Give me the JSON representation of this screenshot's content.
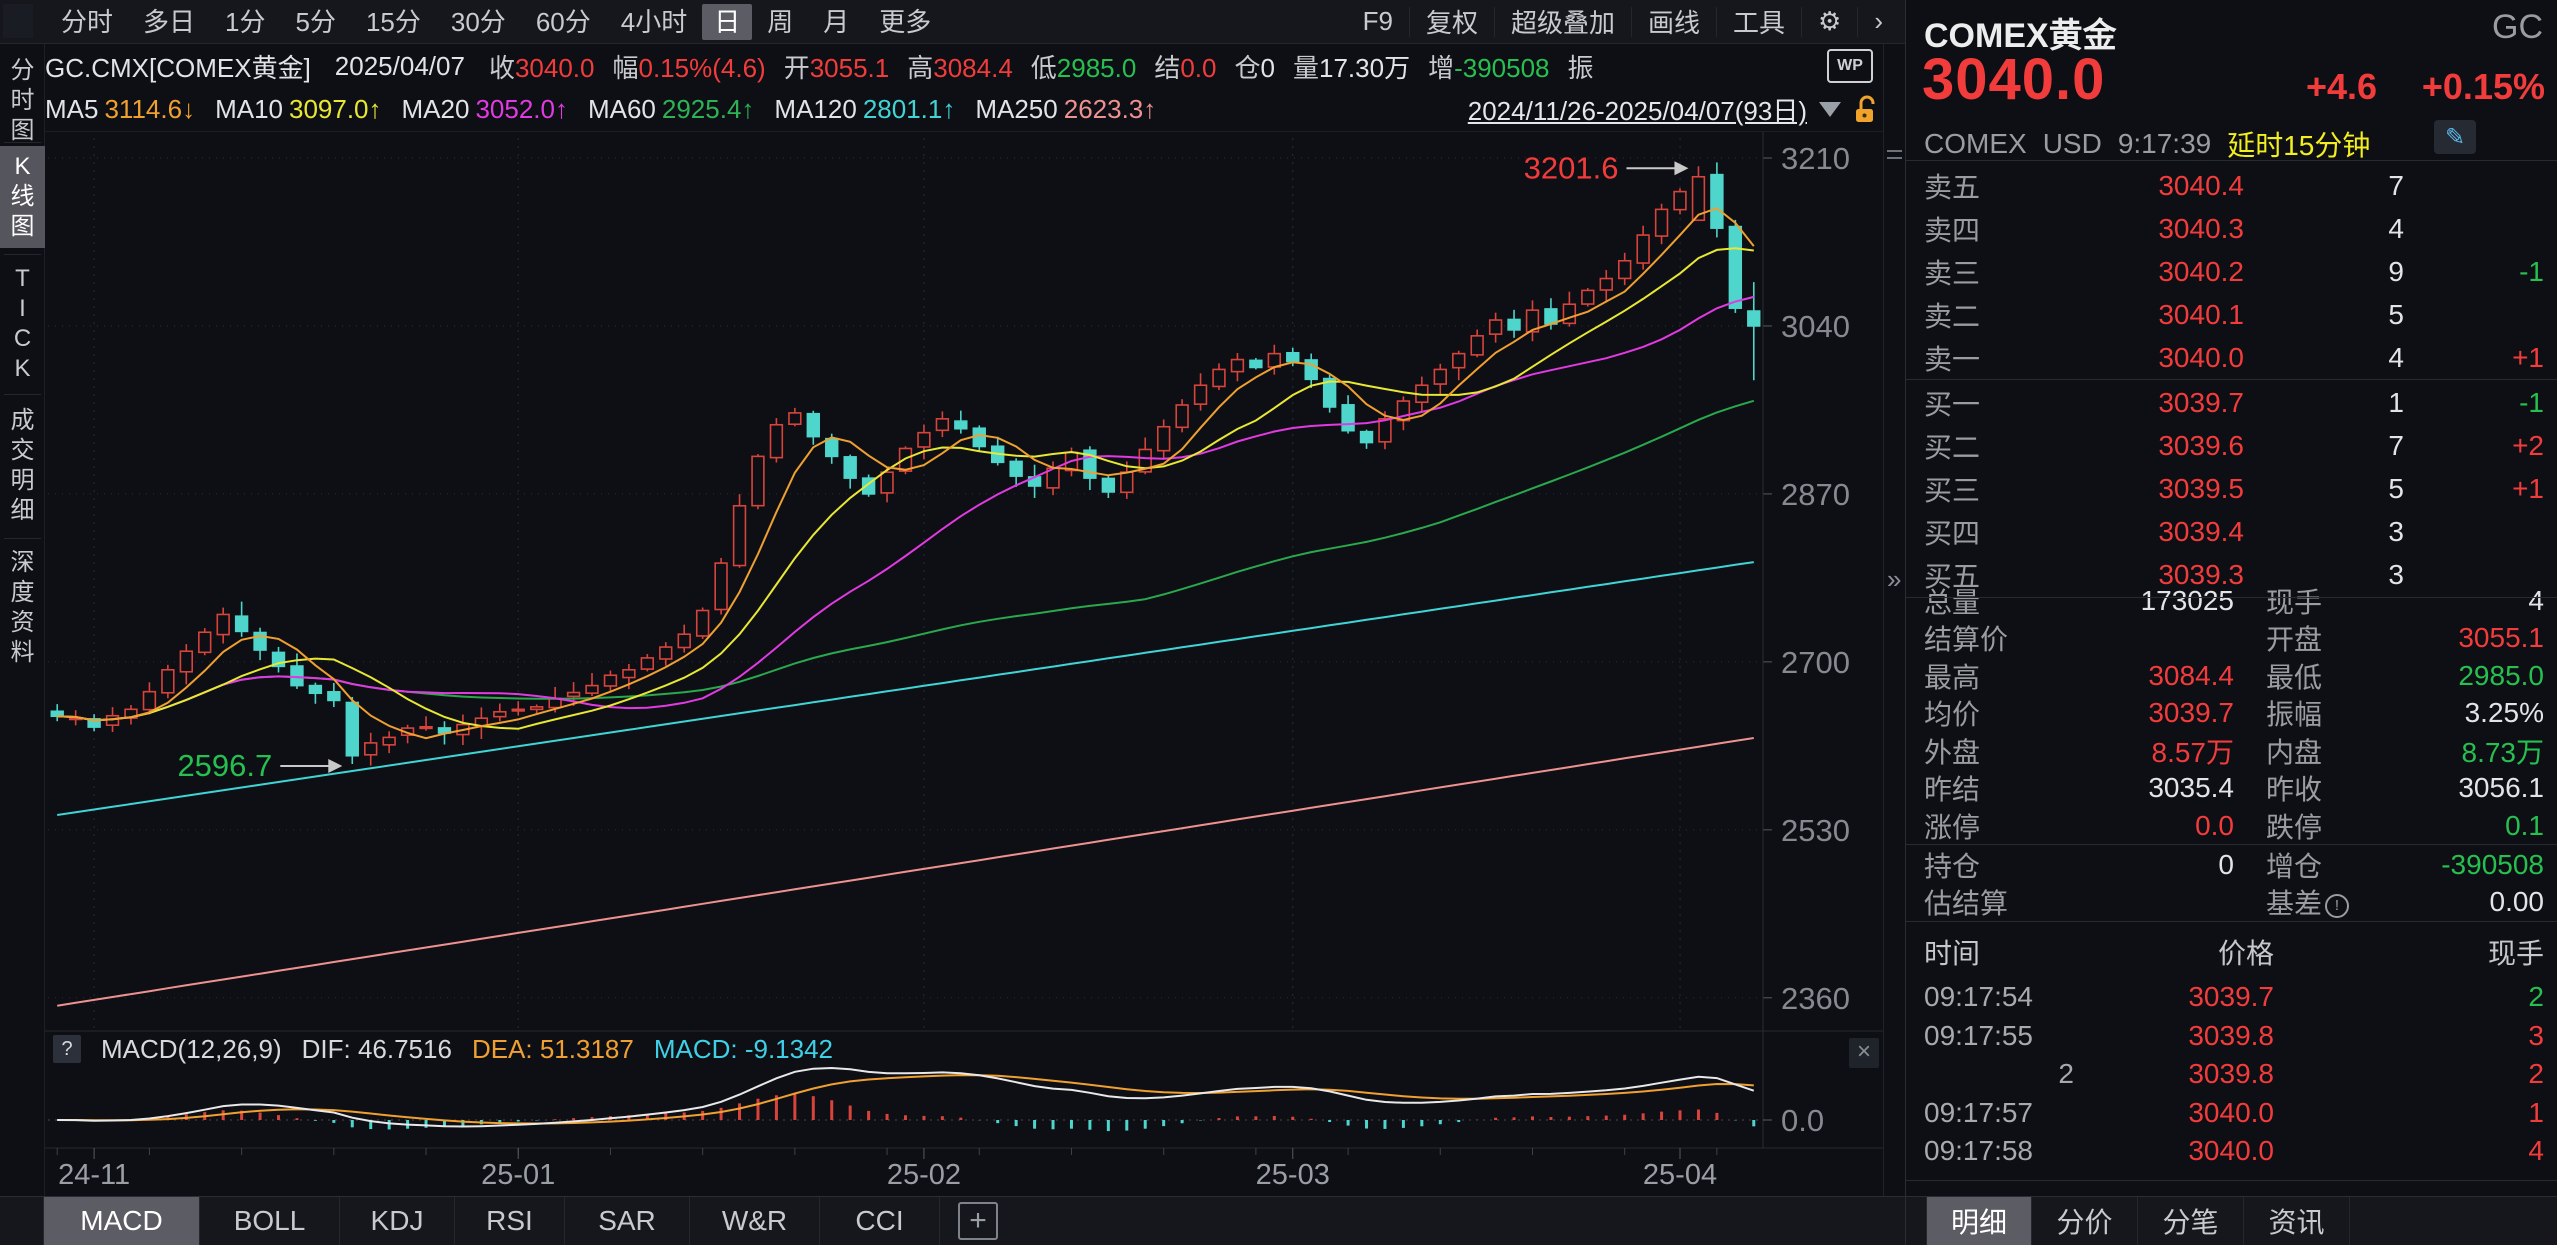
{
  "toolbar": {
    "periods": [
      {
        "label": "分时"
      },
      {
        "label": "多日"
      },
      {
        "label": "1分"
      },
      {
        "label": "5分"
      },
      {
        "label": "15分"
      },
      {
        "label": "30分"
      },
      {
        "label": "60分"
      },
      {
        "label": "4小时"
      },
      {
        "label": "日",
        "selected": true
      },
      {
        "label": "周"
      },
      {
        "label": "月"
      },
      {
        "label": "更多"
      }
    ],
    "right_items": [
      {
        "label": "F9",
        "name": "f9-button"
      },
      {
        "label": "复权",
        "name": "adjust-button"
      },
      {
        "label": "超级叠加",
        "name": "overlay-button"
      },
      {
        "label": "画线",
        "name": "draw-line-button"
      },
      {
        "label": "工具",
        "name": "tools-button"
      },
      {
        "label": "⚙",
        "name": "gear-icon"
      },
      {
        "label": "›",
        "name": "chevron-right-icon"
      }
    ]
  },
  "info_bar": {
    "symbol": "GC.CMX[COMEX黄金]",
    "date": "2025/04/07",
    "fields": [
      {
        "label": "收",
        "value": "3040.0",
        "color": "red"
      },
      {
        "label": "幅",
        "value": "0.15%(4.6)",
        "color": "red"
      },
      {
        "label": "开",
        "value": "3055.1",
        "color": "red"
      },
      {
        "label": "高",
        "value": "3084.4",
        "color": "red"
      },
      {
        "label": "低",
        "value": "2985.0",
        "color": "green"
      },
      {
        "label": "结",
        "value": "0.0",
        "color": "red"
      },
      {
        "label": "仓",
        "value": "0",
        "color": "white"
      },
      {
        "label": "量",
        "value": "17.30万",
        "color": "white"
      },
      {
        "label": "增",
        "value": "-390508",
        "color": "green"
      },
      {
        "label": "振",
        "value": "",
        "color": "white"
      }
    ]
  },
  "ma_bar": {
    "items": [
      {
        "label": "MA5",
        "value": "3114.6",
        "arrow": "↓",
        "color": "#f0a030"
      },
      {
        "label": "MA10",
        "value": "3097.0",
        "arrow": "↑",
        "color": "#e8e833"
      },
      {
        "label": "MA20",
        "value": "3052.0",
        "arrow": "↑",
        "color": "#e23ae2"
      },
      {
        "label": "MA60",
        "value": "2925.4",
        "arrow": "↑",
        "color": "#2db355"
      },
      {
        "label": "MA120",
        "value": "2801.1",
        "arrow": "↑",
        "color": "#41d4d4"
      },
      {
        "label": "MA250",
        "value": "2623.3",
        "arrow": "↑",
        "color": "#ef9191"
      }
    ],
    "date_range": "2024/11/26-2025/04/07(93日)"
  },
  "sidebar": {
    "items": [
      {
        "label": "分时图",
        "name": "sidebar-item-intraday-chart"
      },
      {
        "label": "K线图",
        "name": "sidebar-item-kline-chart",
        "selected": true
      },
      {
        "label": "TICK",
        "name": "sidebar-item-tick"
      },
      {
        "label": "成交明细",
        "name": "sidebar-item-trade-details"
      },
      {
        "label": "深度资料",
        "name": "sidebar-item-depth-info"
      }
    ]
  },
  "chart_data": {
    "type": "candlestick",
    "symbol": "GC.CMX",
    "period": "日",
    "days": 93,
    "y_ticks": [
      3210,
      3040,
      2870,
      2700,
      2530,
      2360
    ],
    "x_ticks": [
      {
        "label": "24-11",
        "idx": 2
      },
      {
        "label": "25-01",
        "idx": 25
      },
      {
        "label": "25-02",
        "idx": 47
      },
      {
        "label": "25-03",
        "idx": 67
      },
      {
        "label": "25-04",
        "idx": 88
      }
    ],
    "price_range": {
      "top": 3233,
      "bottom": 2327
    },
    "close_anchors": [
      [
        0,
        2645
      ],
      [
        2,
        2634
      ],
      [
        4,
        2652
      ],
      [
        6,
        2692
      ],
      [
        8,
        2730
      ],
      [
        9,
        2748
      ],
      [
        11,
        2712
      ],
      [
        13,
        2676
      ],
      [
        15,
        2661
      ],
      [
        16,
        2605
      ],
      [
        17,
        2618
      ],
      [
        19,
        2633
      ],
      [
        21,
        2628
      ],
      [
        23,
        2643
      ],
      [
        25,
        2652
      ],
      [
        27,
        2663
      ],
      [
        29,
        2676
      ],
      [
        31,
        2692
      ],
      [
        33,
        2715
      ],
      [
        34,
        2728
      ],
      [
        35,
        2752
      ],
      [
        36,
        2800
      ],
      [
        37,
        2858
      ],
      [
        38,
        2908
      ],
      [
        39,
        2940
      ],
      [
        40,
        2952
      ],
      [
        41,
        2928
      ],
      [
        42,
        2908
      ],
      [
        43,
        2886
      ],
      [
        44,
        2870
      ],
      [
        45,
        2892
      ],
      [
        46,
        2916
      ],
      [
        47,
        2932
      ],
      [
        48,
        2946
      ],
      [
        49,
        2936
      ],
      [
        50,
        2918
      ],
      [
        51,
        2902
      ],
      [
        52,
        2888
      ],
      [
        53,
        2878
      ],
      [
        54,
        2896
      ],
      [
        55,
        2912
      ],
      [
        56,
        2886
      ],
      [
        57,
        2872
      ],
      [
        58,
        2892
      ],
      [
        59,
        2915
      ],
      [
        60,
        2938
      ],
      [
        61,
        2960
      ],
      [
        62,
        2980
      ],
      [
        63,
        2996
      ],
      [
        64,
        3006
      ],
      [
        65,
        2998
      ],
      [
        66,
        3012
      ],
      [
        67,
        3004
      ],
      [
        68,
        2986
      ],
      [
        69,
        2958
      ],
      [
        70,
        2934
      ],
      [
        71,
        2922
      ],
      [
        72,
        2946
      ],
      [
        73,
        2964
      ],
      [
        74,
        2980
      ],
      [
        75,
        2996
      ],
      [
        76,
        3012
      ],
      [
        77,
        3030
      ],
      [
        78,
        3046
      ],
      [
        79,
        3036
      ],
      [
        80,
        3056
      ],
      [
        81,
        3042
      ],
      [
        82,
        3062
      ],
      [
        83,
        3076
      ],
      [
        84,
        3088
      ],
      [
        85,
        3106
      ],
      [
        86,
        3132
      ],
      [
        87,
        3158
      ],
      [
        88,
        3176
      ],
      [
        89,
        3191
      ],
      [
        90,
        3139
      ],
      [
        91,
        3058
      ],
      [
        92,
        3040
      ]
    ],
    "overrides": {
      "10": {
        "high": 2761
      },
      "16": {
        "low": 2596.7
      },
      "89": {
        "open": 3147,
        "close": 3191,
        "high": 3201.6
      },
      "90": {
        "close": 3139
      },
      "91": {
        "close": 3058
      },
      "92": {
        "open": 3055.1,
        "high": 3084.4,
        "low": 2985.0,
        "close": 3040.0
      }
    },
    "annotations": [
      {
        "text": "3201.6",
        "idx": 89,
        "price": 3201.6,
        "color": "#f23c3c"
      },
      {
        "text": "2596.7",
        "idx": 16,
        "price": 2596.7,
        "color": "#27c050"
      }
    ],
    "ma_periods": [
      {
        "period": 5,
        "color": "#f0a030"
      },
      {
        "period": 10,
        "color": "#e8e833"
      },
      {
        "period": 20,
        "color": "#e23ae2"
      },
      {
        "period": 60,
        "color": "#2aa84d"
      }
    ],
    "ma_trend": [
      {
        "name": "MA120",
        "start": 2545,
        "end": 2801,
        "color": "#41d4d4"
      },
      {
        "name": "MA250",
        "start": 2352,
        "end": 2623,
        "color": "#ef9191"
      }
    ],
    "candle_up_color": "#d8443c",
    "candle_down_color": "#4ed5cc",
    "macd_pane": {
      "zero_label": "0.0",
      "dif_color": "#e8e8e8",
      "dea_color": "#f0a030",
      "up_color": "#d8443c",
      "down_color": "#4ed5cc"
    }
  },
  "macd": {
    "prefix": "MACD(12,26,9)",
    "dif": "DIF: 46.7516",
    "dea": "DEA: 51.3187",
    "macd": "MACD: -9.1342"
  },
  "indicator_tabs": [
    {
      "label": "MACD",
      "selected": true
    },
    {
      "label": "BOLL"
    },
    {
      "label": "KDJ"
    },
    {
      "label": "RSI"
    },
    {
      "label": "SAR"
    },
    {
      "label": "W&R"
    },
    {
      "label": "CCI"
    }
  ],
  "panel": {
    "name": "COMEX黄金",
    "code": "GC",
    "price": "3040.0",
    "change": "+4.6",
    "change_pct": "+0.15%",
    "exchange": "COMEX",
    "currency": "USD",
    "time": "9:17:39",
    "delay": "延时15分钟",
    "asks": [
      {
        "label": "卖五",
        "price": "3040.4",
        "vol": "7",
        "delta": "",
        "delta_color": "white"
      },
      {
        "label": "卖四",
        "price": "3040.3",
        "vol": "4",
        "delta": "",
        "delta_color": "white"
      },
      {
        "label": "卖三",
        "price": "3040.2",
        "vol": "9",
        "delta": "-1",
        "delta_color": "green"
      },
      {
        "label": "卖二",
        "price": "3040.1",
        "vol": "5",
        "delta": "",
        "delta_color": "white"
      },
      {
        "label": "卖一",
        "price": "3040.0",
        "vol": "4",
        "delta": "+1",
        "delta_color": "red"
      }
    ],
    "bids": [
      {
        "label": "买一",
        "price": "3039.7",
        "vol": "1",
        "delta": "-1",
        "delta_color": "green"
      },
      {
        "label": "买二",
        "price": "3039.6",
        "vol": "7",
        "delta": "+2",
        "delta_color": "red"
      },
      {
        "label": "买三",
        "price": "3039.5",
        "vol": "5",
        "delta": "+1",
        "delta_color": "red"
      },
      {
        "label": "买四",
        "price": "3039.4",
        "vol": "3",
        "delta": "",
        "delta_color": "white"
      },
      {
        "label": "买五",
        "price": "3039.3",
        "vol": "3",
        "delta": "",
        "delta_color": "white"
      }
    ],
    "stats_group1": [
      {
        "l": "总量",
        "v": "173025",
        "c": "white",
        "l2": "现手",
        "v2": "4",
        "c2": "white"
      },
      {
        "l": "结算价",
        "v": "",
        "c": "white",
        "l2": "开盘",
        "v2": "3055.1",
        "c2": "red"
      },
      {
        "l": "最高",
        "v": "3084.4",
        "c": "red",
        "l2": "最低",
        "v2": "2985.0",
        "c2": "green"
      },
      {
        "l": "均价",
        "v": "3039.7",
        "c": "red",
        "l2": "振幅",
        "v2": "3.25%",
        "c2": "white"
      },
      {
        "l": "外盘",
        "v": "8.57万",
        "c": "red",
        "l2": "内盘",
        "v2": "8.73万",
        "c2": "green"
      },
      {
        "l": "昨结",
        "v": "3035.4",
        "c": "white",
        "l2": "昨收",
        "v2": "3056.1",
        "c2": "white"
      },
      {
        "l": "涨停",
        "v": "0.0",
        "c": "red",
        "l2": "跌停",
        "v2": "0.1",
        "c2": "green"
      }
    ],
    "stats_group2": [
      {
        "l": "持仓",
        "v": "0",
        "c": "white",
        "l2": "增仓",
        "v2": "-390508",
        "c2": "green"
      },
      {
        "l": "估结算",
        "v": "",
        "c": "white",
        "l2": "基差",
        "info": true,
        "v2": "0.00",
        "c2": "white"
      }
    ],
    "tape": {
      "headers": [
        "时间",
        "价格",
        "现手"
      ],
      "rows": [
        {
          "t": "09:17:54",
          "p": "3039.7",
          "v": "2",
          "vc": "green"
        },
        {
          "t": "09:17:55",
          "p": "3039.8",
          "v": "3",
          "vc": "red"
        },
        {
          "t": "2",
          "p": "3039.8",
          "v": "2",
          "vc": "red",
          "t_align": "right"
        },
        {
          "t": "09:17:57",
          "p": "3040.0",
          "v": "1",
          "vc": "red"
        },
        {
          "t": "09:17:58",
          "p": "3040.0",
          "v": "4",
          "vc": "red"
        }
      ]
    },
    "tabs": [
      {
        "label": "明细",
        "selected": true
      },
      {
        "label": "分价"
      },
      {
        "label": "分笔"
      },
      {
        "label": "资讯"
      }
    ]
  },
  "icons": {
    "gear": "⚙",
    "chevron_right": "›",
    "wp": "WP",
    "close": "×",
    "question": "?",
    "plus": "+",
    "pencil": "✎",
    "collapse": "»",
    "info_mark": "!"
  }
}
